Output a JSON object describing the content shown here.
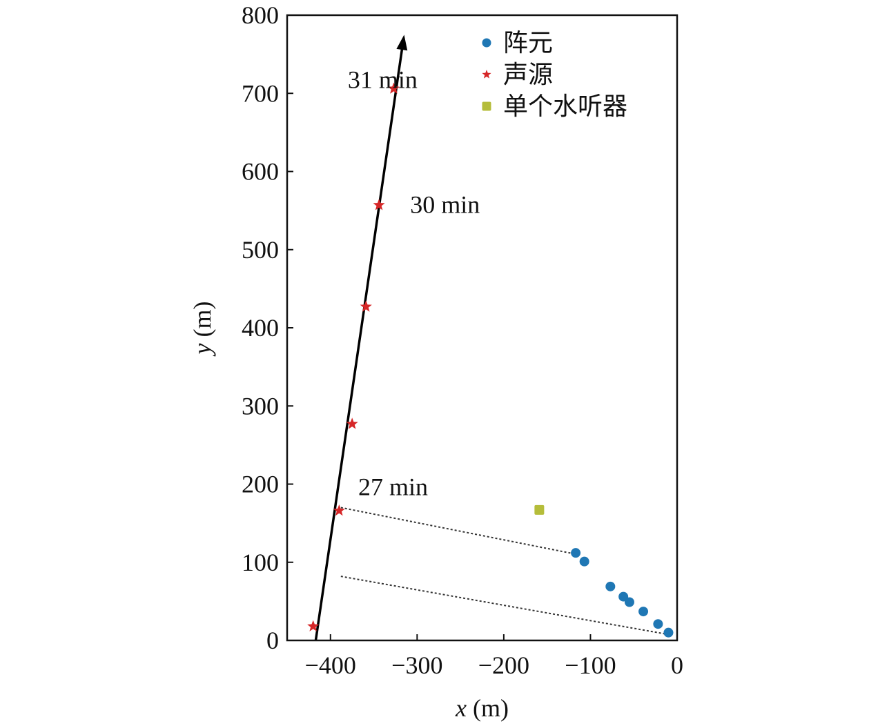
{
  "chart_data": {
    "type": "scatter",
    "xlabel": "x (m)",
    "ylabel": "y (m)",
    "xlabel_var": "x",
    "xlabel_unit": " (m)",
    "ylabel_var": "y",
    "ylabel_unit": " (m)",
    "xlim": [
      -450,
      0
    ],
    "ylim": [
      0,
      800
    ],
    "xticks": [
      -400,
      -300,
      -200,
      -100,
      0
    ],
    "yticks": [
      0,
      100,
      200,
      300,
      400,
      500,
      600,
      700,
      800
    ],
    "xtick_labels": [
      "−400",
      "−300",
      "−200",
      "−100",
      "0"
    ],
    "ytick_labels": [
      "0",
      "100",
      "200",
      "300",
      "400",
      "500",
      "600",
      "700",
      "800"
    ],
    "grid": false,
    "legend_position": "top-right",
    "series": [
      {
        "name": "阵元",
        "marker": "circle",
        "color": "#1f77b4",
        "points": [
          {
            "x": -117,
            "y": 112
          },
          {
            "x": -107,
            "y": 101
          },
          {
            "x": -77,
            "y": 69
          },
          {
            "x": -62,
            "y": 56
          },
          {
            "x": -55,
            "y": 49
          },
          {
            "x": -39,
            "y": 37
          },
          {
            "x": -22,
            "y": 21
          },
          {
            "x": -10,
            "y": 10
          }
        ]
      },
      {
        "name": "声源",
        "marker": "star",
        "color": "#d62728",
        "points": [
          {
            "x": -420,
            "y": 18
          },
          {
            "x": -390,
            "y": 166
          },
          {
            "x": -375,
            "y": 277
          },
          {
            "x": -359,
            "y": 427
          },
          {
            "x": -344,
            "y": 557
          },
          {
            "x": -327,
            "y": 706
          }
        ]
      },
      {
        "name": "单个水听器",
        "marker": "square",
        "color": "#b5bd3a",
        "points": [
          {
            "x": -159,
            "y": 167
          }
        ]
      }
    ],
    "arrow": {
      "from": {
        "x": -417,
        "y": 0
      },
      "to": {
        "x": -315,
        "y": 775
      }
    },
    "dotted_lines": [
      {
        "from": {
          "x": -388,
          "y": 170
        },
        "to": {
          "x": -115,
          "y": 110
        }
      },
      {
        "from": {
          "x": -388,
          "y": 82
        },
        "to": {
          "x": -12,
          "y": 8
        }
      }
    ],
    "annotations": [
      {
        "text": "31 min",
        "x": -380,
        "y": 707
      },
      {
        "text": "30 min",
        "x": -308,
        "y": 547
      },
      {
        "text": "27 min",
        "x": -368,
        "y": 186
      }
    ]
  }
}
